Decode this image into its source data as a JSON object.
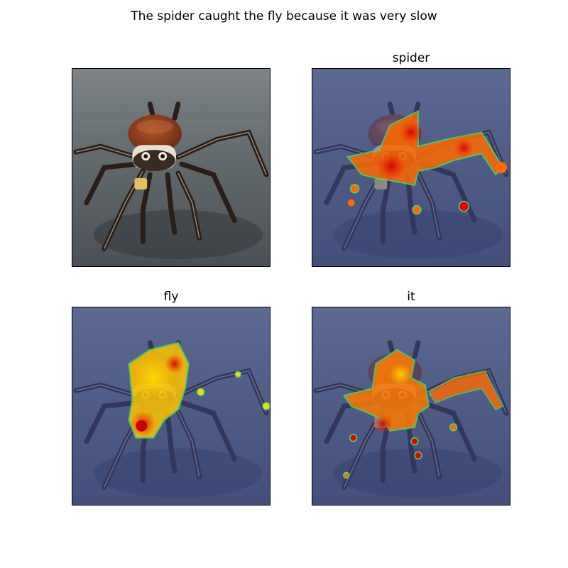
{
  "figure": {
    "title": "The spider caught the fly because it was very slow"
  },
  "panels": [
    {
      "title": "",
      "image": "spider-photo",
      "overlay": "none"
    },
    {
      "title": "spider",
      "image": "spider-photo",
      "overlay": "attention-heatmap"
    },
    {
      "title": "fly",
      "image": "spider-photo",
      "overlay": "attention-heatmap"
    },
    {
      "title": "it",
      "image": "spider-photo",
      "overlay": "attention-heatmap"
    }
  ],
  "colors": {
    "tint": "#3c50a0",
    "heat_low": "#ff6a00",
    "heat_high": "#e60000",
    "heat_yellow": "#ffd400",
    "heat_edge": "#44dd66"
  }
}
